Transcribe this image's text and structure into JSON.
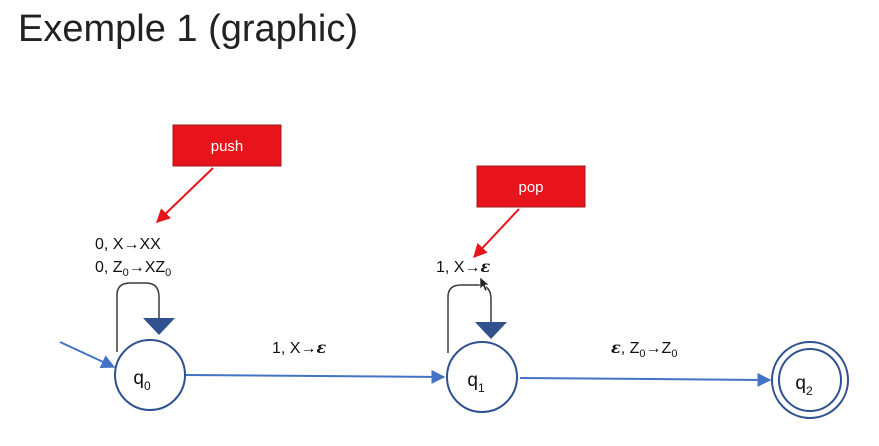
{
  "title": "Exemple 1 (graphic)",
  "colors": {
    "edge": "#4472c4",
    "state_stroke": "#2f528f",
    "self_loop": "#3a3a3a",
    "loop_arrowhead": "#2f528f",
    "callout_fill": "#e8141c",
    "callout_border": "#9e1a1a",
    "callout_pointer": "#e8141c"
  },
  "states": [
    {
      "id": "q0",
      "base": "q",
      "index": "0",
      "start": true,
      "accepting": false
    },
    {
      "id": "q1",
      "base": "q",
      "index": "1",
      "start": false,
      "accepting": false
    },
    {
      "id": "q2",
      "base": "q",
      "index": "2",
      "start": false,
      "accepting": true
    }
  ],
  "transitions": {
    "q0_loop_line1": {
      "prefix": "0, X",
      "arrow": "→",
      "result": "XX"
    },
    "q0_loop_line2": {
      "prefix": "0, Z",
      "prefix_sub": "0",
      "arrow": "→",
      "result": "XZ",
      "result_sub": "0"
    },
    "q0_to_q1": {
      "prefix": "1, X",
      "arrow": "→",
      "result": "ε"
    },
    "q1_loop": {
      "prefix": "1, X",
      "arrow": "→",
      "result": "ε"
    },
    "q1_to_q2": {
      "prefix": "ε",
      "middle": ", Z",
      "middle_sub": "0",
      "arrow": "→",
      "result": "Z",
      "result_sub": "0"
    }
  },
  "callouts": {
    "push": {
      "label": "push"
    },
    "pop": {
      "label": "pop"
    }
  }
}
